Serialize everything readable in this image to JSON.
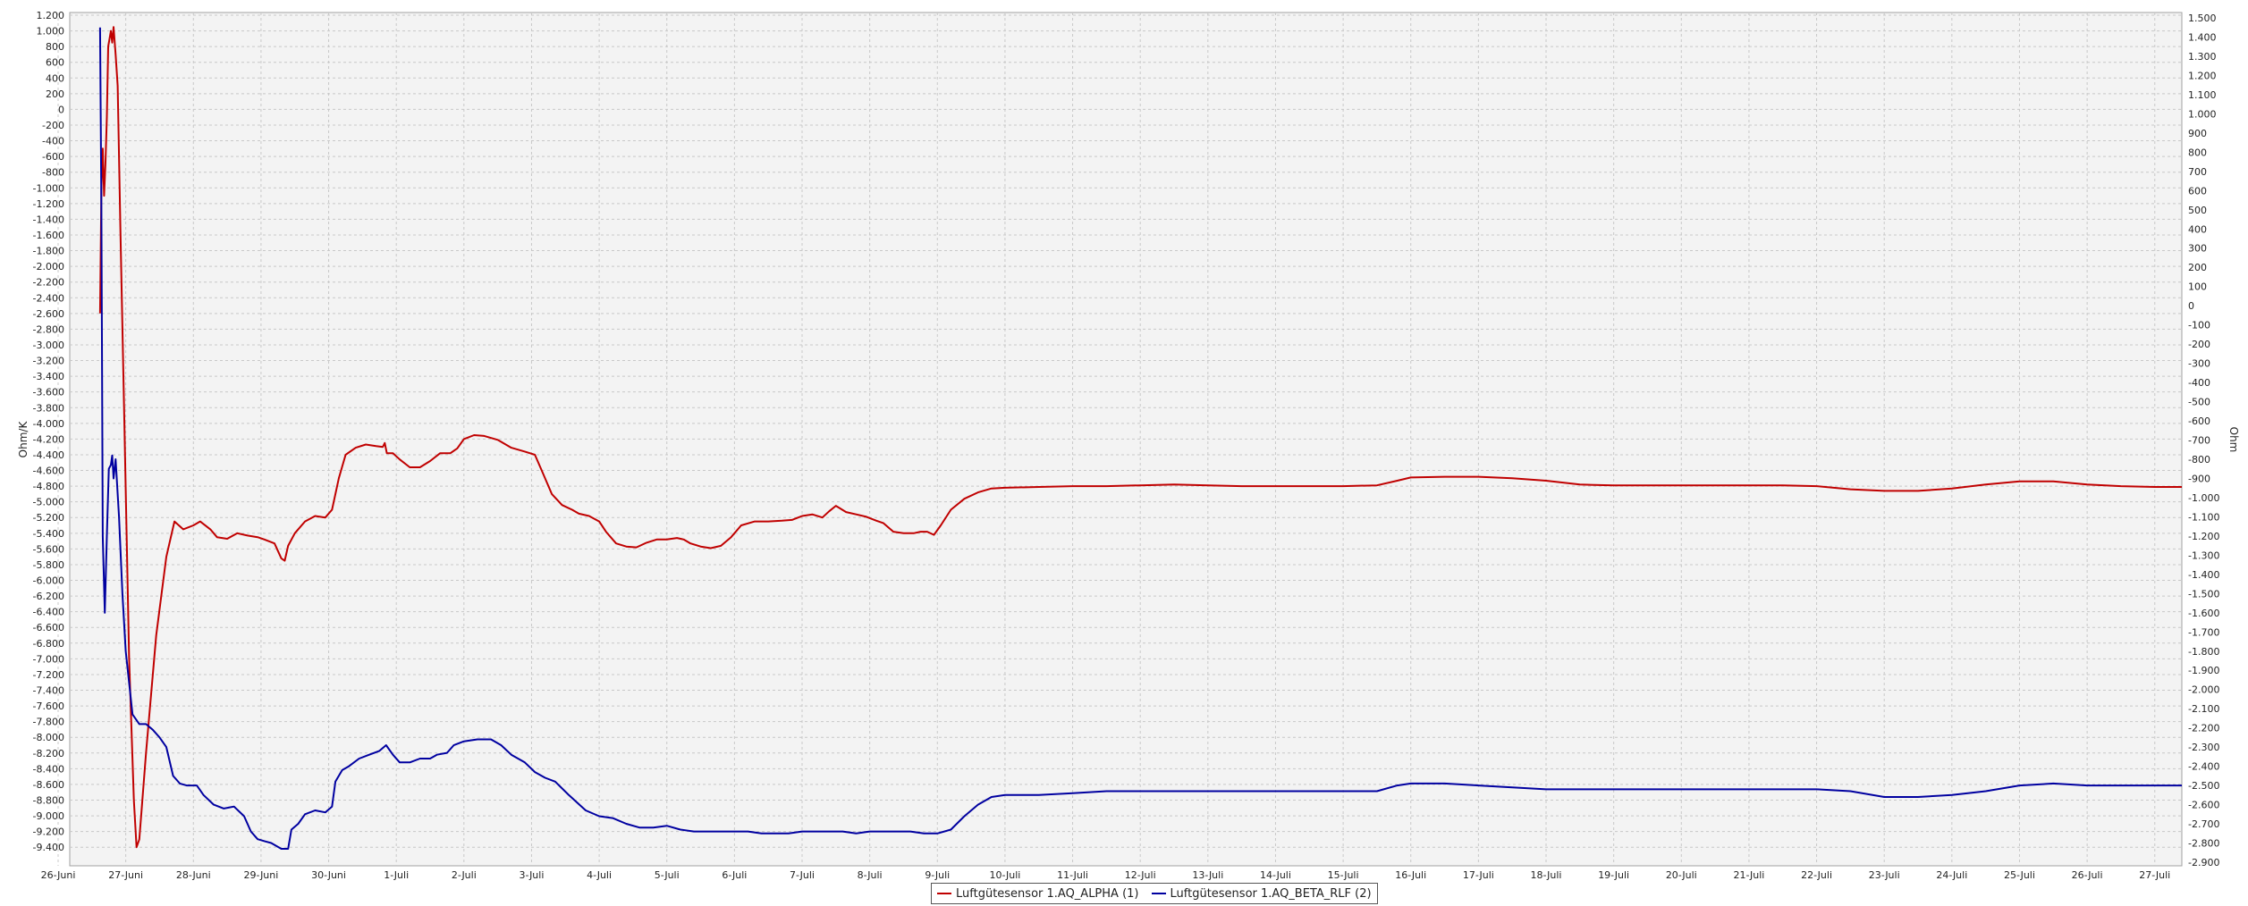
{
  "chart_data": {
    "type": "line",
    "y_left": {
      "label": "Ohm/K",
      "range": [
        -9500,
        1200
      ],
      "ticks": [
        1200,
        1000,
        800,
        600,
        400,
        200,
        0,
        -200,
        -400,
        -600,
        -800,
        -1000,
        -1200,
        -1400,
        -1600,
        -1800,
        -2000,
        -2200,
        -2400,
        -2600,
        -2800,
        -3000,
        -3200,
        -3400,
        -3600,
        -3800,
        -4000,
        -4200,
        -4400,
        -4600,
        -4800,
        -5000,
        -5200,
        -5400,
        -5600,
        -5800,
        -6000,
        -6200,
        -6400,
        -6600,
        -6800,
        -7000,
        -7200,
        -7400,
        -7600,
        -7800,
        -8000,
        -8200,
        -8400,
        -8600,
        -8800,
        -9000,
        -9200,
        -9400
      ]
    },
    "y_right": {
      "label": "Ohm",
      "range": [
        -2900,
        1500
      ],
      "ticks": [
        1500,
        1400,
        1300,
        1200,
        1100,
        1000,
        900,
        800,
        700,
        600,
        500,
        400,
        300,
        200,
        100,
        0,
        -100,
        -200,
        -300,
        -400,
        -500,
        -600,
        -700,
        -800,
        -900,
        -1000,
        -1100,
        -1200,
        -1300,
        -1400,
        -1500,
        -1600,
        -1700,
        -1800,
        -1900,
        -2000,
        -2100,
        -2200,
        -2300,
        -2400,
        -2500,
        -2600,
        -2700,
        -2800,
        -2900
      ]
    },
    "x_axis": {
      "range_days": [
        0,
        31.4
      ],
      "tick_labels": [
        "26-Juni",
        "27-Juni",
        "28-Juni",
        "29-Juni",
        "30-Juni",
        "1-Juli",
        "2-Juli",
        "3-Juli",
        "4-Juli",
        "5-Juli",
        "6-Juli",
        "7-Juli",
        "8-Juli",
        "9-Juli",
        "10-Juli",
        "11-Juli",
        "12-Juli",
        "13-Juli",
        "14-Juli",
        "15-Juli",
        "16-Juli",
        "17-Juli",
        "18-Juli",
        "19-Juli",
        "20-Juli",
        "21-Juli",
        "22-Juli",
        "23-Juli",
        "24-Juli",
        "25-Juli",
        "26-Juli",
        "27-Juli"
      ]
    },
    "grid": true,
    "legend_position": "bottom-center",
    "series": [
      {
        "name": "Luftgütesensor 1.AQ_ALPHA (1)",
        "axis": "left",
        "color": "#c00000",
        "points": [
          [
            0.62,
            -2600
          ],
          [
            0.64,
            -1000
          ],
          [
            0.66,
            -500
          ],
          [
            0.68,
            -1100
          ],
          [
            0.7,
            -700
          ],
          [
            0.72,
            -100
          ],
          [
            0.74,
            800
          ],
          [
            0.76,
            900
          ],
          [
            0.78,
            1000
          ],
          [
            0.8,
            850
          ],
          [
            0.82,
            1050
          ],
          [
            0.85,
            700
          ],
          [
            0.88,
            300
          ],
          [
            0.92,
            -1500
          ],
          [
            0.98,
            -4000
          ],
          [
            1.05,
            -7000
          ],
          [
            1.12,
            -8800
          ],
          [
            1.16,
            -9400
          ],
          [
            1.2,
            -9300
          ],
          [
            1.3,
            -8200
          ],
          [
            1.45,
            -6700
          ],
          [
            1.6,
            -5700
          ],
          [
            1.72,
            -5250
          ],
          [
            1.85,
            -5350
          ],
          [
            2.0,
            -5300
          ],
          [
            2.1,
            -5250
          ],
          [
            2.25,
            -5350
          ],
          [
            2.35,
            -5450
          ],
          [
            2.5,
            -5470
          ],
          [
            2.65,
            -5400
          ],
          [
            2.8,
            -5430
          ],
          [
            2.95,
            -5450
          ],
          [
            3.05,
            -5480
          ],
          [
            3.2,
            -5530
          ],
          [
            3.3,
            -5720
          ],
          [
            3.35,
            -5750
          ],
          [
            3.4,
            -5560
          ],
          [
            3.5,
            -5400
          ],
          [
            3.65,
            -5250
          ],
          [
            3.8,
            -5180
          ],
          [
            3.95,
            -5200
          ],
          [
            4.05,
            -5100
          ],
          [
            4.15,
            -4700
          ],
          [
            4.25,
            -4400
          ],
          [
            4.4,
            -4310
          ],
          [
            4.55,
            -4270
          ],
          [
            4.7,
            -4290
          ],
          [
            4.8,
            -4300
          ],
          [
            4.83,
            -4250
          ],
          [
            4.86,
            -4380
          ],
          [
            4.95,
            -4380
          ],
          [
            5.05,
            -4460
          ],
          [
            5.2,
            -4560
          ],
          [
            5.35,
            -4560
          ],
          [
            5.5,
            -4480
          ],
          [
            5.65,
            -4380
          ],
          [
            5.8,
            -4380
          ],
          [
            5.9,
            -4320
          ],
          [
            6.0,
            -4200
          ],
          [
            6.15,
            -4150
          ],
          [
            6.3,
            -4160
          ],
          [
            6.5,
            -4210
          ],
          [
            6.7,
            -4310
          ],
          [
            6.9,
            -4360
          ],
          [
            7.05,
            -4400
          ],
          [
            7.15,
            -4600
          ],
          [
            7.3,
            -4900
          ],
          [
            7.45,
            -5040
          ],
          [
            7.6,
            -5100
          ],
          [
            7.7,
            -5150
          ],
          [
            7.85,
            -5180
          ],
          [
            8.0,
            -5250
          ],
          [
            8.1,
            -5380
          ],
          [
            8.25,
            -5530
          ],
          [
            8.4,
            -5570
          ],
          [
            8.55,
            -5580
          ],
          [
            8.7,
            -5520
          ],
          [
            8.85,
            -5480
          ],
          [
            9.0,
            -5480
          ],
          [
            9.15,
            -5460
          ],
          [
            9.25,
            -5480
          ],
          [
            9.35,
            -5530
          ],
          [
            9.5,
            -5570
          ],
          [
            9.65,
            -5590
          ],
          [
            9.8,
            -5560
          ],
          [
            9.95,
            -5450
          ],
          [
            10.1,
            -5300
          ],
          [
            10.3,
            -5250
          ],
          [
            10.5,
            -5250
          ],
          [
            10.7,
            -5240
          ],
          [
            10.85,
            -5230
          ],
          [
            11.0,
            -5180
          ],
          [
            11.15,
            -5160
          ],
          [
            11.3,
            -5200
          ],
          [
            11.4,
            -5120
          ],
          [
            11.5,
            -5050
          ],
          [
            11.65,
            -5130
          ],
          [
            11.8,
            -5160
          ],
          [
            11.95,
            -5190
          ],
          [
            12.1,
            -5240
          ],
          [
            12.2,
            -5270
          ],
          [
            12.35,
            -5380
          ],
          [
            12.5,
            -5400
          ],
          [
            12.65,
            -5400
          ],
          [
            12.75,
            -5380
          ],
          [
            12.85,
            -5380
          ],
          [
            12.95,
            -5420
          ],
          [
            13.05,
            -5300
          ],
          [
            13.2,
            -5100
          ],
          [
            13.4,
            -4960
          ],
          [
            13.6,
            -4880
          ],
          [
            13.8,
            -4830
          ],
          [
            14.0,
            -4820
          ],
          [
            14.5,
            -4810
          ],
          [
            15.0,
            -4800
          ],
          [
            15.5,
            -4800
          ],
          [
            16.0,
            -4790
          ],
          [
            16.5,
            -4780
          ],
          [
            17.0,
            -4790
          ],
          [
            17.5,
            -4800
          ],
          [
            18.0,
            -4800
          ],
          [
            18.5,
            -4800
          ],
          [
            19.0,
            -4800
          ],
          [
            19.5,
            -4790
          ],
          [
            19.8,
            -4730
          ],
          [
            20.0,
            -4690
          ],
          [
            20.5,
            -4680
          ],
          [
            21.0,
            -4680
          ],
          [
            21.5,
            -4700
          ],
          [
            22.0,
            -4730
          ],
          [
            22.5,
            -4780
          ],
          [
            23.0,
            -4790
          ],
          [
            23.5,
            -4790
          ],
          [
            24.0,
            -4790
          ],
          [
            24.5,
            -4790
          ],
          [
            25.0,
            -4790
          ],
          [
            25.5,
            -4790
          ],
          [
            26.0,
            -4800
          ],
          [
            26.5,
            -4840
          ],
          [
            27.0,
            -4860
          ],
          [
            27.5,
            -4860
          ],
          [
            28.0,
            -4830
          ],
          [
            28.5,
            -4780
          ],
          [
            29.0,
            -4740
          ],
          [
            29.5,
            -4740
          ],
          [
            30.0,
            -4780
          ],
          [
            30.5,
            -4800
          ],
          [
            31.0,
            -4810
          ],
          [
            31.4,
            -4810
          ]
        ]
      },
      {
        "name": "Luftgütesensor 1.AQ_BETA_RLF (2)",
        "axis": "right",
        "color": "#0000a0",
        "points": [
          [
            0.62,
            1450
          ],
          [
            0.64,
            500
          ],
          [
            0.66,
            -1200
          ],
          [
            0.69,
            -1600
          ],
          [
            0.72,
            -1200
          ],
          [
            0.75,
            -850
          ],
          [
            0.78,
            -830
          ],
          [
            0.8,
            -780
          ],
          [
            0.82,
            -900
          ],
          [
            0.85,
            -800
          ],
          [
            0.9,
            -1100
          ],
          [
            0.95,
            -1500
          ],
          [
            1.0,
            -1800
          ],
          [
            1.1,
            -2130
          ],
          [
            1.2,
            -2180
          ],
          [
            1.3,
            -2180
          ],
          [
            1.4,
            -2210
          ],
          [
            1.5,
            -2250
          ],
          [
            1.6,
            -2300
          ],
          [
            1.7,
            -2450
          ],
          [
            1.8,
            -2490
          ],
          [
            1.9,
            -2500
          ],
          [
            2.05,
            -2500
          ],
          [
            2.15,
            -2550
          ],
          [
            2.3,
            -2600
          ],
          [
            2.45,
            -2620
          ],
          [
            2.6,
            -2610
          ],
          [
            2.75,
            -2660
          ],
          [
            2.85,
            -2740
          ],
          [
            2.95,
            -2780
          ],
          [
            3.05,
            -2790
          ],
          [
            3.15,
            -2800
          ],
          [
            3.3,
            -2830
          ],
          [
            3.4,
            -2830
          ],
          [
            3.45,
            -2730
          ],
          [
            3.55,
            -2700
          ],
          [
            3.65,
            -2650
          ],
          [
            3.8,
            -2630
          ],
          [
            3.95,
            -2640
          ],
          [
            4.05,
            -2610
          ],
          [
            4.1,
            -2480
          ],
          [
            4.2,
            -2420
          ],
          [
            4.3,
            -2400
          ],
          [
            4.45,
            -2360
          ],
          [
            4.6,
            -2340
          ],
          [
            4.75,
            -2320
          ],
          [
            4.85,
            -2290
          ],
          [
            4.95,
            -2340
          ],
          [
            5.05,
            -2380
          ],
          [
            5.2,
            -2380
          ],
          [
            5.35,
            -2360
          ],
          [
            5.5,
            -2360
          ],
          [
            5.6,
            -2340
          ],
          [
            5.75,
            -2330
          ],
          [
            5.85,
            -2290
          ],
          [
            6.0,
            -2270
          ],
          [
            6.2,
            -2260
          ],
          [
            6.4,
            -2260
          ],
          [
            6.55,
            -2290
          ],
          [
            6.7,
            -2340
          ],
          [
            6.9,
            -2380
          ],
          [
            7.05,
            -2430
          ],
          [
            7.2,
            -2460
          ],
          [
            7.35,
            -2480
          ],
          [
            7.55,
            -2550
          ],
          [
            7.8,
            -2630
          ],
          [
            8.0,
            -2660
          ],
          [
            8.2,
            -2670
          ],
          [
            8.4,
            -2700
          ],
          [
            8.6,
            -2720
          ],
          [
            8.8,
            -2720
          ],
          [
            9.0,
            -2710
          ],
          [
            9.2,
            -2730
          ],
          [
            9.4,
            -2740
          ],
          [
            9.6,
            -2740
          ],
          [
            9.8,
            -2740
          ],
          [
            10.0,
            -2740
          ],
          [
            10.2,
            -2740
          ],
          [
            10.4,
            -2750
          ],
          [
            10.6,
            -2750
          ],
          [
            10.8,
            -2750
          ],
          [
            11.0,
            -2740
          ],
          [
            11.2,
            -2740
          ],
          [
            11.4,
            -2740
          ],
          [
            11.6,
            -2740
          ],
          [
            11.8,
            -2750
          ],
          [
            12.0,
            -2740
          ],
          [
            12.2,
            -2740
          ],
          [
            12.4,
            -2740
          ],
          [
            12.6,
            -2740
          ],
          [
            12.8,
            -2750
          ],
          [
            13.0,
            -2750
          ],
          [
            13.2,
            -2730
          ],
          [
            13.4,
            -2660
          ],
          [
            13.6,
            -2600
          ],
          [
            13.8,
            -2560
          ],
          [
            14.0,
            -2550
          ],
          [
            14.5,
            -2550
          ],
          [
            15.0,
            -2540
          ],
          [
            15.5,
            -2530
          ],
          [
            16.0,
            -2530
          ],
          [
            16.5,
            -2530
          ],
          [
            17.0,
            -2530
          ],
          [
            17.5,
            -2530
          ],
          [
            18.0,
            -2530
          ],
          [
            18.5,
            -2530
          ],
          [
            19.0,
            -2530
          ],
          [
            19.5,
            -2530
          ],
          [
            19.8,
            -2500
          ],
          [
            20.0,
            -2490
          ],
          [
            20.5,
            -2490
          ],
          [
            21.0,
            -2500
          ],
          [
            21.5,
            -2510
          ],
          [
            22.0,
            -2520
          ],
          [
            22.5,
            -2520
          ],
          [
            23.0,
            -2520
          ],
          [
            23.5,
            -2520
          ],
          [
            24.0,
            -2520
          ],
          [
            24.5,
            -2520
          ],
          [
            25.0,
            -2520
          ],
          [
            25.5,
            -2520
          ],
          [
            26.0,
            -2520
          ],
          [
            26.5,
            -2530
          ],
          [
            27.0,
            -2560
          ],
          [
            27.5,
            -2560
          ],
          [
            28.0,
            -2550
          ],
          [
            28.5,
            -2530
          ],
          [
            29.0,
            -2500
          ],
          [
            29.5,
            -2490
          ],
          [
            30.0,
            -2500
          ],
          [
            30.5,
            -2500
          ],
          [
            31.0,
            -2500
          ],
          [
            31.4,
            -2500
          ]
        ]
      }
    ]
  }
}
